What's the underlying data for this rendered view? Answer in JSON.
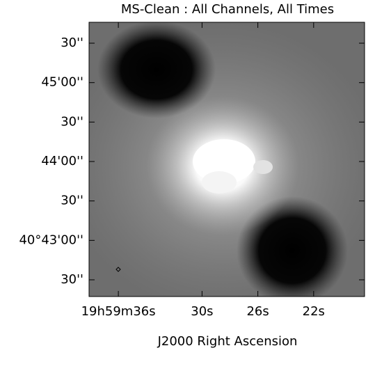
{
  "chart_data": {
    "type": "image",
    "title": "MS-Clean : All Channels, All Times",
    "x_label": "J2000 Right Ascension",
    "xlim": [
      38.1,
      18.35
    ],
    "xticks": [
      {
        "value": 36,
        "label": "19h59m36s"
      },
      {
        "value": 30,
        "label": "30s"
      },
      {
        "value": 26,
        "label": "26s"
      },
      {
        "value": 22,
        "label": "22s"
      }
    ],
    "ylim": [
      146537.3,
      146745.9
    ],
    "yticks": [
      {
        "value": 146730,
        "label": "30''"
      },
      {
        "value": 146700,
        "label": "45'00''"
      },
      {
        "value": 146670,
        "label": "30''"
      },
      {
        "value": 146640,
        "label": "44'00''"
      },
      {
        "value": 146610,
        "label": "30''"
      },
      {
        "value": 146580,
        "label": "40°43'00''"
      },
      {
        "value": 146550,
        "label": "30''"
      }
    ]
  }
}
